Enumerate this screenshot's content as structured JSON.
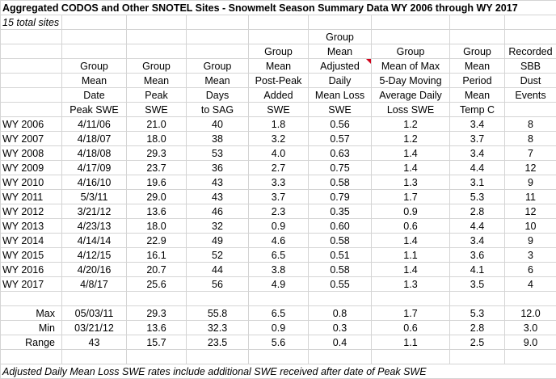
{
  "title": "Aggregated CODOS and Other SNOTEL Sites - Snowmelt Season Summary Data WY 2006 through WY 2017",
  "subtitle": "15 total sites",
  "headers": [
    [
      "",
      "",
      "",
      "",
      "",
      "Group",
      "",
      "",
      ""
    ],
    [
      "",
      "",
      "",
      "",
      "Group",
      "Mean",
      "Group",
      "Group",
      "Recorded"
    ],
    [
      "Group",
      "Group",
      "Group",
      "",
      "Mean",
      "Adjusted",
      "Mean of Max",
      "Mean",
      "SBB"
    ],
    [
      "Mean",
      "Mean",
      "Mean",
      "",
      "Post-Peak",
      "Daily",
      "5-Day Moving",
      "Period",
      "Dust"
    ],
    [
      "Date",
      "Peak",
      "Days",
      "",
      "Added",
      "Mean Loss",
      "Average Daily",
      "Mean",
      "Events"
    ],
    [
      "Peak SWE",
      "SWE",
      "to SAG",
      "",
      "SWE",
      "SWE",
      "Loss SWE",
      "Temp C",
      ""
    ]
  ],
  "header_rows": [
    [
      "",
      "",
      "",
      "",
      "Group",
      "",
      "",
      ""
    ],
    [
      "",
      "",
      "",
      "Group",
      "Mean",
      "Group",
      "Group",
      "Recorded"
    ],
    [
      "Group",
      "Group",
      "Group",
      "Mean",
      "Adjusted",
      "Mean of Max",
      "Mean",
      "SBB"
    ],
    [
      "Mean",
      "Mean",
      "Mean",
      "Post-Peak",
      "Daily",
      "5-Day Moving",
      "Period",
      "Dust"
    ],
    [
      "Date",
      "Peak",
      "Days",
      "Added",
      "Mean Loss",
      "Average Daily",
      "Mean",
      "Events"
    ],
    [
      "Peak SWE",
      "SWE",
      "to SAG",
      "SWE",
      "SWE",
      "Loss SWE",
      "Temp C",
      ""
    ]
  ],
  "rows": [
    [
      "WY 2006",
      "4/11/06",
      "21.0",
      "40",
      "1.8",
      "0.56",
      "1.2",
      "3.4",
      "8"
    ],
    [
      "WY 2007",
      "4/18/07",
      "18.0",
      "38",
      "3.2",
      "0.57",
      "1.2",
      "3.7",
      "8"
    ],
    [
      "WY 2008",
      "4/18/08",
      "29.3",
      "53",
      "4.0",
      "0.63",
      "1.4",
      "3.4",
      "7"
    ],
    [
      "WY 2009",
      "4/17/09",
      "23.7",
      "36",
      "2.7",
      "0.75",
      "1.4",
      "4.4",
      "12"
    ],
    [
      "WY 2010",
      "4/16/10",
      "19.6",
      "43",
      "3.3",
      "0.58",
      "1.3",
      "3.1",
      "9"
    ],
    [
      "WY 2011",
      "5/3/11",
      "29.0",
      "43",
      "3.7",
      "0.79",
      "1.7",
      "5.3",
      "11"
    ],
    [
      "WY 2012",
      "3/21/12",
      "13.6",
      "46",
      "2.3",
      "0.35",
      "0.9",
      "2.8",
      "12"
    ],
    [
      "WY 2013",
      "4/23/13",
      "18.0",
      "32",
      "0.9",
      "0.60",
      "0.6",
      "4.4",
      "10"
    ],
    [
      "WY 2014",
      "4/14/14",
      "22.9",
      "49",
      "4.6",
      "0.58",
      "1.4",
      "3.4",
      "9"
    ],
    [
      "WY 2015",
      "4/12/15",
      "16.1",
      "52",
      "6.5",
      "0.51",
      "1.1",
      "3.6",
      "3"
    ],
    [
      "WY 2016",
      "4/20/16",
      "20.7",
      "44",
      "3.8",
      "0.58",
      "1.4",
      "4.1",
      "6"
    ],
    [
      "WY 2017",
      "4/8/17",
      "25.6",
      "56",
      "4.9",
      "0.55",
      "1.3",
      "3.5",
      "4"
    ]
  ],
  "stats": [
    [
      "Max",
      "05/03/11",
      "29.3",
      "55.8",
      "6.5",
      "0.8",
      "1.7",
      "5.3",
      "12.0"
    ],
    [
      "Min",
      "03/21/12",
      "13.6",
      "32.3",
      "0.9",
      "0.3",
      "0.6",
      "2.8",
      "3.0"
    ],
    [
      "Range",
      "43",
      "15.7",
      "23.5",
      "5.6",
      "0.4",
      "1.1",
      "2.5",
      "9.0"
    ]
  ],
  "footnote": "Adjusted Daily Mean Loss SWE rates include additional SWE received after date of Peak SWE",
  "colors": {
    "gridline": "#d4d4d4",
    "comment_marker": "#d0021b"
  }
}
